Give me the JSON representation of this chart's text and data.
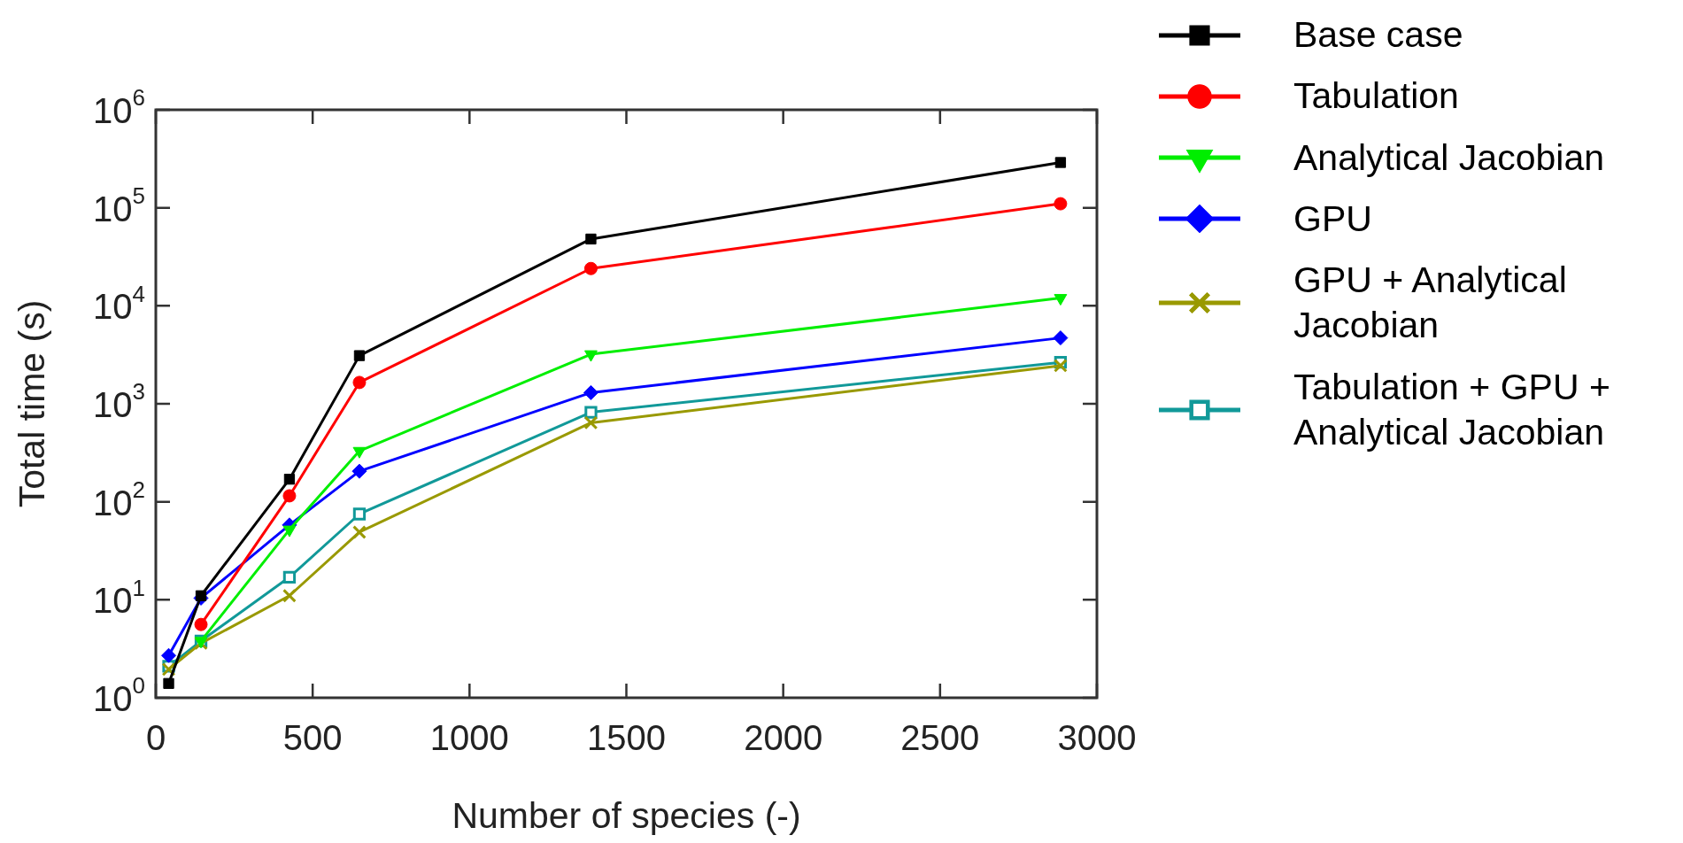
{
  "chart_data": {
    "type": "line",
    "xlabel": "Number of species (-)",
    "ylabel": "Total time (s)",
    "log": "y",
    "legend": "right",
    "x": [
      41,
      144,
      426,
      649,
      1387,
      2884
    ],
    "xlim": [
      0,
      3000
    ],
    "xticks": [
      0,
      500,
      1000,
      1500,
      2000,
      2500,
      3000
    ],
    "ylim": [
      1,
      1000000
    ],
    "yticks": [
      {
        "value": 1,
        "label": "10$^{0}$"
      },
      {
        "value": 10,
        "label": "10$^{1}$"
      },
      {
        "value": 100,
        "label": "10$^{2}$"
      },
      {
        "value": 1000,
        "label": "10$^{3}$"
      },
      {
        "value": 10000,
        "label": "10$^{4}$"
      },
      {
        "value": 100000,
        "label": "10$^{5}$"
      },
      {
        "value": 1000000,
        "label": "10$^{6}$"
      }
    ],
    "series": [
      {
        "name": "Base case",
        "color": "#000000",
        "marker": "square",
        "values": [
          1.4,
          11,
          170,
          3100,
          48000,
          290000
        ]
      },
      {
        "name": "Tabulation",
        "color": "#ff0000",
        "marker": "circle",
        "values": [
          null,
          5.6,
          115,
          1650,
          24000,
          110000
        ]
      },
      {
        "name": "Analytical Jacobian",
        "color": "#00ee00",
        "marker": "triangle",
        "values": [
          null,
          3.8,
          52,
          330,
          3200,
          12000
        ]
      },
      {
        "name": "GPU",
        "color": "#0000ff",
        "marker": "diamond",
        "values": [
          2.7,
          10.4,
          58,
          205,
          1300,
          4700
        ]
      },
      {
        "name": "GPU + Analytical Jacobian",
        "color": "#999900",
        "marker": "cross",
        "values": [
          1.95,
          3.6,
          11,
          49,
          640,
          2450
        ]
      },
      {
        "name": "Tabulation + GPU + Analytical Jacobian",
        "color": "#119999",
        "marker": "square-open",
        "values": [
          2.1,
          3.8,
          17,
          75,
          820,
          2650
        ]
      }
    ]
  }
}
